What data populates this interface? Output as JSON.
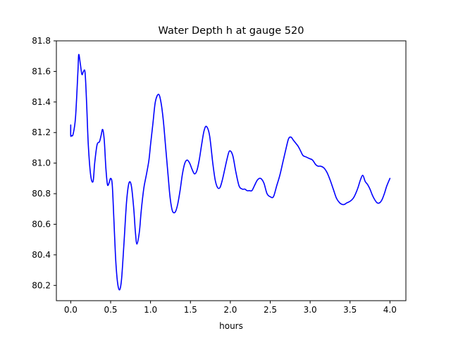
{
  "chart_data": {
    "type": "line",
    "title": "Water Depth h at gauge 520",
    "xlabel": "hours",
    "ylabel": "",
    "xlim": [
      -0.18,
      4.2
    ],
    "ylim": [
      80.1,
      81.8
    ],
    "xticks": [
      0.0,
      0.5,
      1.0,
      1.5,
      2.0,
      2.5,
      3.0,
      3.5,
      4.0
    ],
    "xtick_labels": [
      "0.0",
      "0.5",
      "1.0",
      "1.5",
      "2.0",
      "2.5",
      "3.0",
      "3.5",
      "4.0"
    ],
    "yticks": [
      80.2,
      80.4,
      80.6,
      80.8,
      81.0,
      81.2,
      81.4,
      81.6,
      81.8
    ],
    "ytick_labels": [
      "80.2",
      "80.4",
      "80.6",
      "80.8",
      "81.0",
      "81.2",
      "81.4",
      "81.6",
      "81.8"
    ],
    "grid": false,
    "legend": "none",
    "series": [
      {
        "color": "#0000ff",
        "x": [
          0.0,
          0.0,
          0.01,
          0.03,
          0.06,
          0.09,
          0.1,
          0.12,
          0.14,
          0.16,
          0.18,
          0.2,
          0.22,
          0.25,
          0.28,
          0.3,
          0.33,
          0.36,
          0.38,
          0.4,
          0.42,
          0.44,
          0.46,
          0.48,
          0.5,
          0.52,
          0.54,
          0.56,
          0.58,
          0.6,
          0.62,
          0.64,
          0.67,
          0.7,
          0.73,
          0.76,
          0.79,
          0.81,
          0.83,
          0.86,
          0.88,
          0.9,
          0.92,
          0.95,
          0.98,
          1.0,
          1.03,
          1.06,
          1.1,
          1.13,
          1.16,
          1.19,
          1.22,
          1.24,
          1.26,
          1.28,
          1.31,
          1.34,
          1.37,
          1.4,
          1.43,
          1.46,
          1.49,
          1.52,
          1.55,
          1.58,
          1.61,
          1.64,
          1.67,
          1.7,
          1.74,
          1.78,
          1.81,
          1.84,
          1.87,
          1.9,
          1.93,
          1.96,
          1.99,
          2.03,
          2.07,
          2.11,
          2.15,
          2.18,
          2.21,
          2.24,
          2.27,
          2.3,
          2.34,
          2.38,
          2.42,
          2.46,
          2.5,
          2.54,
          2.58,
          2.62,
          2.66,
          2.7,
          2.73,
          2.76,
          2.79,
          2.82,
          2.85,
          2.88,
          2.91,
          2.95,
          2.99,
          3.03,
          3.07,
          3.1,
          3.13,
          3.17,
          3.21,
          3.25,
          3.29,
          3.33,
          3.37,
          3.4,
          3.43,
          3.46,
          3.5,
          3.54,
          3.57,
          3.6,
          3.63,
          3.66,
          3.69,
          3.72,
          3.75,
          3.78,
          3.81,
          3.84,
          3.87,
          3.9,
          3.93,
          3.96,
          4.0
        ],
        "y": [
          81.25,
          81.18,
          81.18,
          81.19,
          81.3,
          81.6,
          81.71,
          81.65,
          81.58,
          81.6,
          81.59,
          81.38,
          81.12,
          80.92,
          80.88,
          81.0,
          81.12,
          81.14,
          81.18,
          81.22,
          81.15,
          80.97,
          80.86,
          80.87,
          80.9,
          80.86,
          80.64,
          80.4,
          80.25,
          80.18,
          80.18,
          80.26,
          80.5,
          80.75,
          80.87,
          80.85,
          80.7,
          80.55,
          80.47,
          80.55,
          80.67,
          80.77,
          80.85,
          80.93,
          81.02,
          81.12,
          81.26,
          81.4,
          81.45,
          81.4,
          81.28,
          81.1,
          80.92,
          80.8,
          80.72,
          80.68,
          80.68,
          80.73,
          80.82,
          80.93,
          81.0,
          81.02,
          81.0,
          80.96,
          80.93,
          80.95,
          81.02,
          81.12,
          81.21,
          81.24,
          81.18,
          81.0,
          80.89,
          80.84,
          80.84,
          80.89,
          80.96,
          81.03,
          81.08,
          81.05,
          80.94,
          80.85,
          80.83,
          80.83,
          80.82,
          80.82,
          80.82,
          80.85,
          80.89,
          80.9,
          80.87,
          80.8,
          80.78,
          80.78,
          80.85,
          80.92,
          81.01,
          81.1,
          81.16,
          81.17,
          81.15,
          81.13,
          81.11,
          81.08,
          81.05,
          81.04,
          81.03,
          81.02,
          80.99,
          80.98,
          80.98,
          80.97,
          80.94,
          80.89,
          80.83,
          80.77,
          80.74,
          80.73,
          80.73,
          80.74,
          80.75,
          80.77,
          80.8,
          80.84,
          80.89,
          80.92,
          80.88,
          80.86,
          80.83,
          80.79,
          80.76,
          80.74,
          80.74,
          80.76,
          80.8,
          80.85,
          80.9
        ]
      }
    ]
  }
}
